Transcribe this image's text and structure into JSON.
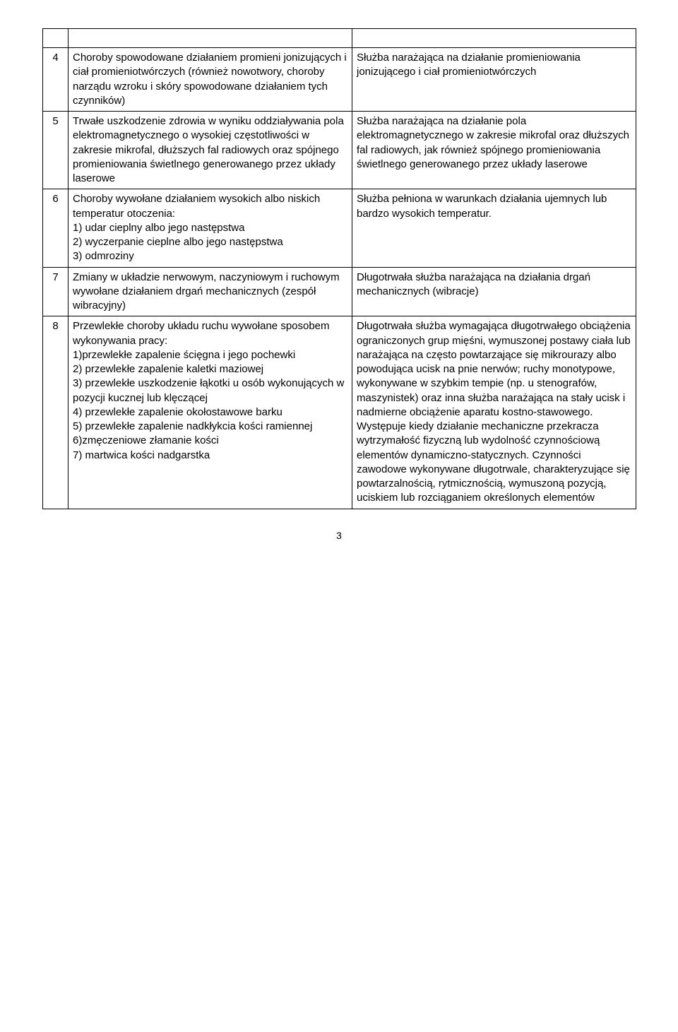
{
  "rows": [
    {
      "num": "",
      "left": "",
      "right": ""
    },
    {
      "num": "4",
      "left": "Choroby spowodowane działaniem promieni jonizujących i ciał promieniotwórczych (również nowotwory, choroby narządu wzroku i skóry spowodowane działaniem tych czynników)",
      "right": " Służba narażająca na działanie promieniowania jonizującego i ciał promieniotwórczych"
    },
    {
      "num": "5",
      "left": "Trwałe uszkodzenie zdrowia w wyniku oddziaływania pola elektromagnetycznego o wysokiej częstotliwości w zakresie mikrofal, dłuższych fal radiowych oraz spójnego promieniowania świetlnego generowanego przez układy laserowe",
      "right": " Służba narażająca na działanie pola elektromagnetycznego w zakresie mikrofal oraz dłuższych fal radiowych, jak również spójnego promieniowania świetlnego generowanego przez układy laserowe"
    },
    {
      "num": "6",
      "left": "Choroby wywołane działaniem wysokich albo niskich temperatur otoczenia:\n1) udar cieplny albo jego następstwa\n2) wyczerpanie cieplne albo jego następstwa\n3) odmroziny",
      "right": "Służba pełniona w warunkach działania ujemnych lub bardzo wysokich temperatur."
    },
    {
      "num": "7",
      "left": "Zmiany w układzie nerwowym, naczyniowym i ruchowym wywołane działaniem drgań mechanicznych (zespół wibracyjny)",
      "right": " Długotrwała służba narażająca na działania drgań mechanicznych (wibracje)"
    },
    {
      "num": "8",
      "left": "Przewlekłe choroby układu ruchu wywołane sposobem wykonywania pracy:\n1)przewlekłe zapalenie ścięgna i jego pochewki\n2) przewlekłe zapalenie kaletki maziowej\n3) przewlekłe uszkodzenie łąkotki u osób wykonujących w pozycji kucznej lub klęczącej\n4) przewlekłe zapalenie okołostawowe barku\n5) przewlekłe zapalenie nadkłykcia kości  ramiennej\n6)zmęczeniowe złamanie kości\n7) martwica kości nadgarstka",
      "right": " Długotrwała służba wymagająca długotrwałego obciążenia ograniczonych grup mięśni, wymuszonej postawy ciała lub narażająca na często powtarzające się mikrourazy albo powodująca ucisk na pnie nerwów; ruchy monotypowe, wykonywane w szybkim tempie (np. u stenografów, maszynistek) oraz inna służba narażająca na stały ucisk i nadmierne obciążenie aparatu kostno-stawowego. Występuje kiedy działanie mechaniczne przekracza wytrzymałość fizyczną lub wydolność czynnościową elementów dynamiczno-statycznych. Czynności zawodowe wykonywane długotrwale, charakteryzujące się powtarzalnością, rytmicznością, wymuszoną pozycją, uciskiem lub rozciąganiem określonych elementów"
    }
  ],
  "pageNumber": "3"
}
